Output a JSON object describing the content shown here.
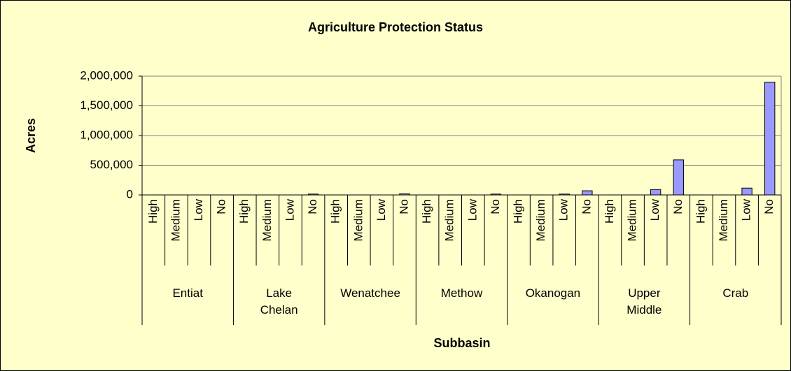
{
  "chart_data": {
    "type": "bar",
    "title": "Agriculture Protection Status",
    "y_label": "Acres",
    "x_label": "Subbasin",
    "groups": [
      {
        "name": "Entiat",
        "categories": [
          "High",
          "Medium",
          "Low",
          "No"
        ],
        "values": [
          0,
          0,
          0,
          0
        ]
      },
      {
        "name": "Lake\nChelan",
        "categories": [
          "High",
          "Medium",
          "Low",
          "No"
        ],
        "values": [
          0,
          0,
          0,
          15000
        ]
      },
      {
        "name": "Wenatchee",
        "categories": [
          "High",
          "Medium",
          "Low",
          "No"
        ],
        "values": [
          0,
          0,
          0,
          20000
        ]
      },
      {
        "name": "Methow",
        "categories": [
          "High",
          "Medium",
          "Low",
          "No"
        ],
        "values": [
          0,
          0,
          0,
          15000
        ]
      },
      {
        "name": "Okanogan",
        "categories": [
          "High",
          "Medium",
          "Low",
          "No"
        ],
        "values": [
          0,
          0,
          15000,
          70000
        ]
      },
      {
        "name": "Upper\nMiddle",
        "categories": [
          "High",
          "Medium",
          "Low",
          "No"
        ],
        "values": [
          0,
          0,
          90000,
          590000
        ]
      },
      {
        "name": "Crab",
        "categories": [
          "High",
          "Medium",
          "Low",
          "No"
        ],
        "values": [
          0,
          0,
          115000,
          1900000
        ]
      }
    ],
    "color": "#9999ff",
    "ylim": [
      0,
      2000000
    ],
    "yticks": [
      0,
      {
        "value": 500000,
        "label": "500,000"
      },
      {
        "value": 1000000,
        "label": "1,000,000"
      },
      {
        "value": 1500000,
        "label": "1,500,000"
      },
      {
        "value": 2000000,
        "label": "2,000,000"
      }
    ],
    "grid": true
  }
}
